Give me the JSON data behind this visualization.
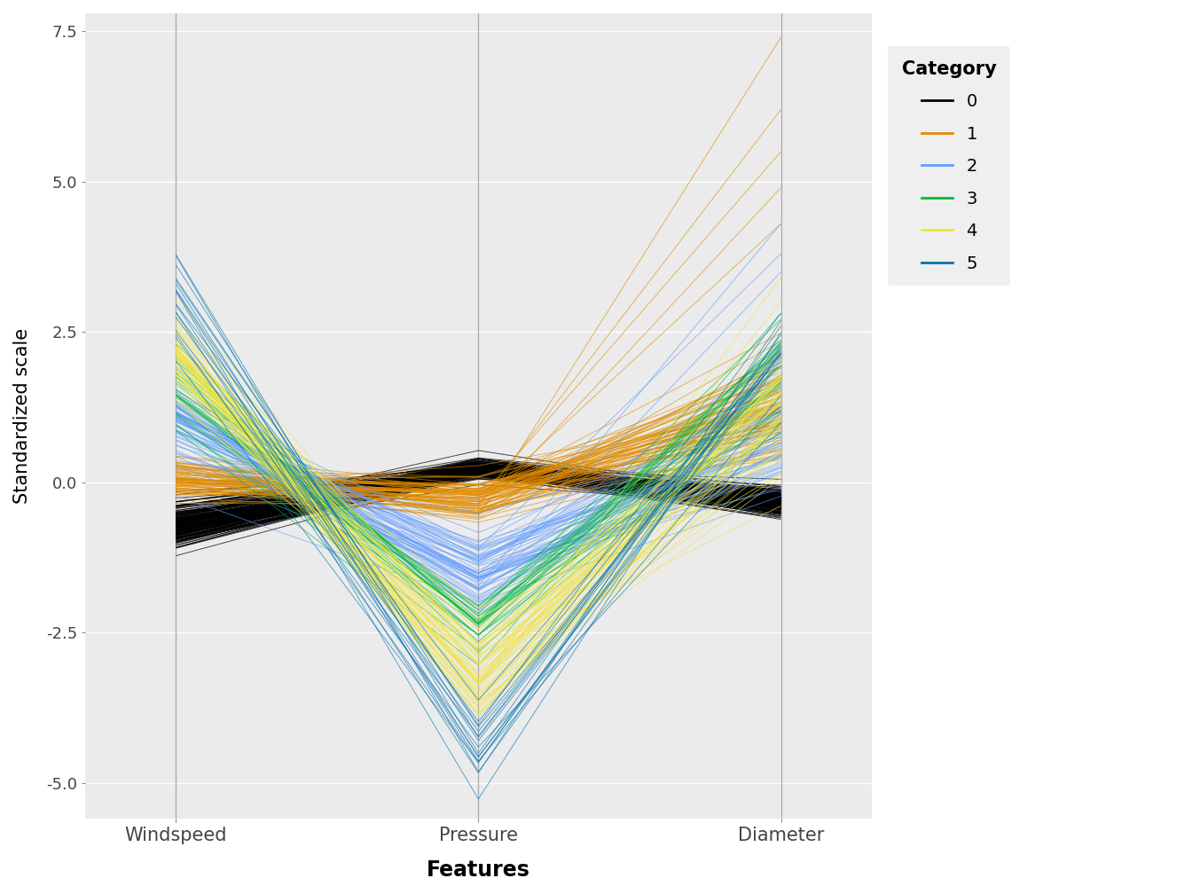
{
  "features": [
    "Windspeed",
    "Pressure",
    "Diameter"
  ],
  "category_colors": {
    "0": "#000000",
    "1": "#E08B00",
    "2": "#619CFF",
    "3": "#00BA38",
    "4": "#F0E442",
    "5": "#0072B2"
  },
  "xlabel": "Features",
  "ylabel": "Standardized scale",
  "ylim": [
    -5.6,
    7.8
  ],
  "yticks": [
    -5.0,
    -2.5,
    0.0,
    2.5,
    5.0,
    7.5
  ],
  "background_color": "#EBEBEB",
  "seed": 42
}
